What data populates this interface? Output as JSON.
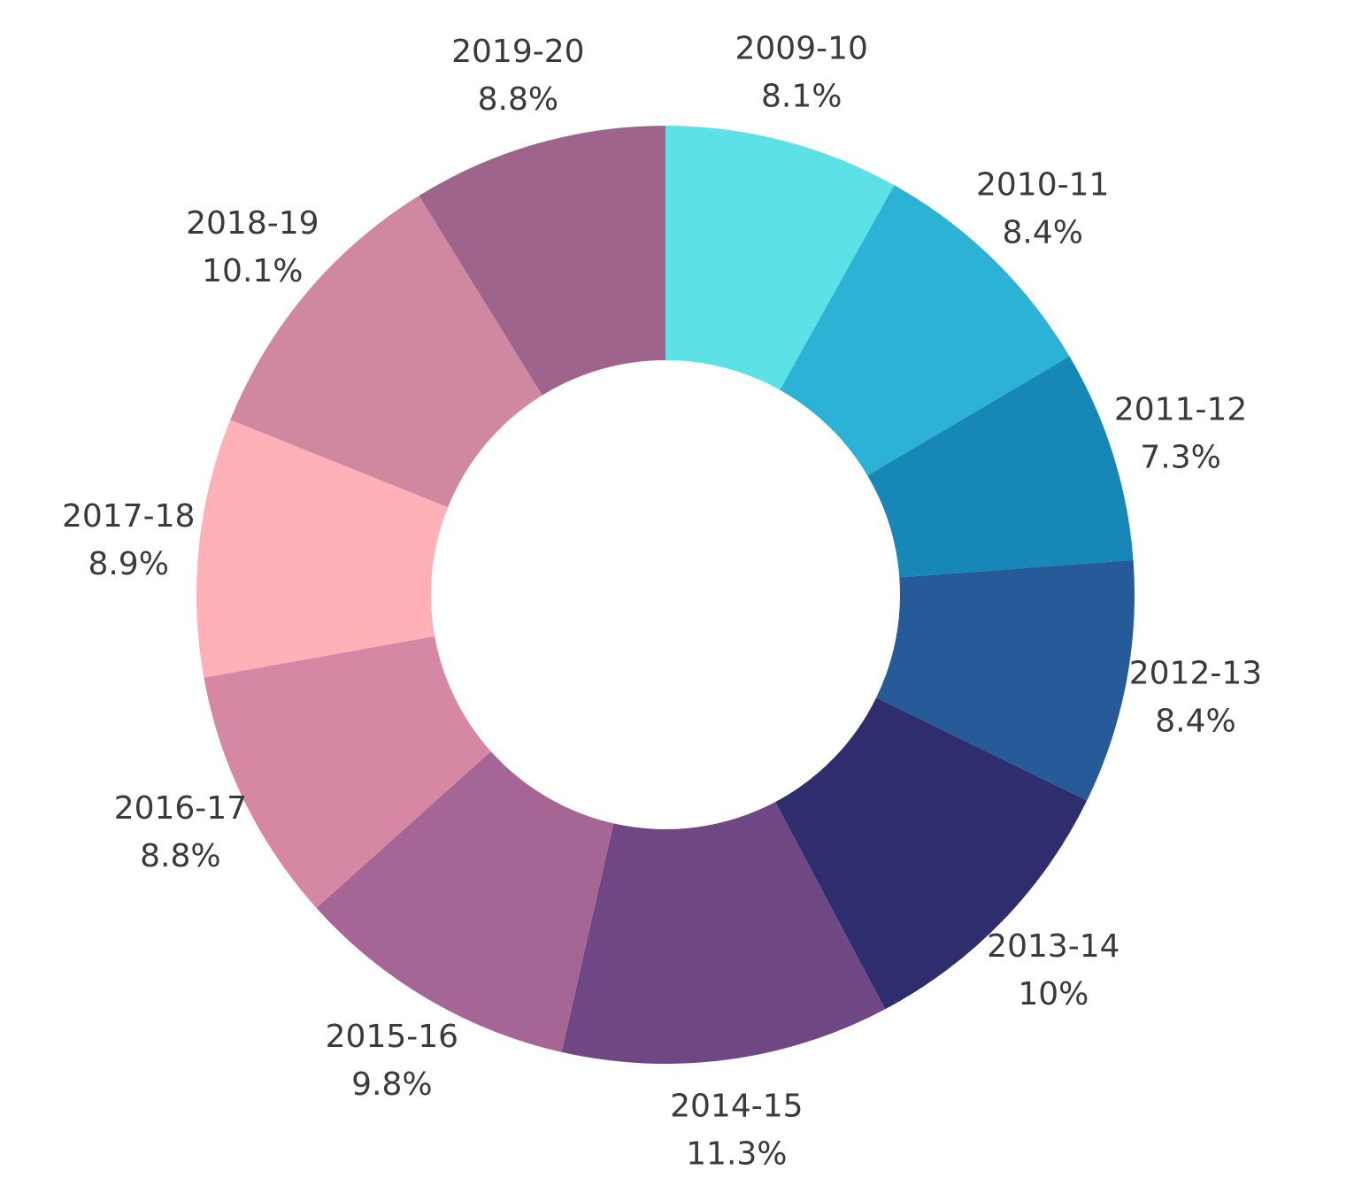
{
  "chart_data": {
    "type": "pie",
    "donut": true,
    "title": "",
    "legend": "none",
    "categories": [
      "2009-10",
      "2010-11",
      "2011-12",
      "2012-13",
      "2013-14",
      "2014-15",
      "2015-16",
      "2016-17",
      "2017-18",
      "2018-19",
      "2019-20"
    ],
    "values": [
      8.1,
      8.4,
      7.3,
      8.4,
      10,
      11.3,
      9.8,
      8.8,
      8.9,
      10.1,
      8.8
    ],
    "value_labels": [
      "8.1%",
      "8.4%",
      "7.3%",
      "8.4%",
      "10%",
      "11.3%",
      "9.8%",
      "8.8%",
      "8.9%",
      "10.1%",
      "8.8%"
    ],
    "colors": [
      "#5ce1e6",
      "#2cb2d4",
      "#1787b8",
      "#275a98",
      "#2e2d6e",
      "#6f4883",
      "#a56595",
      "#d587a3",
      "#ffb1b7",
      "#cf88a0",
      "#9e648c"
    ]
  }
}
